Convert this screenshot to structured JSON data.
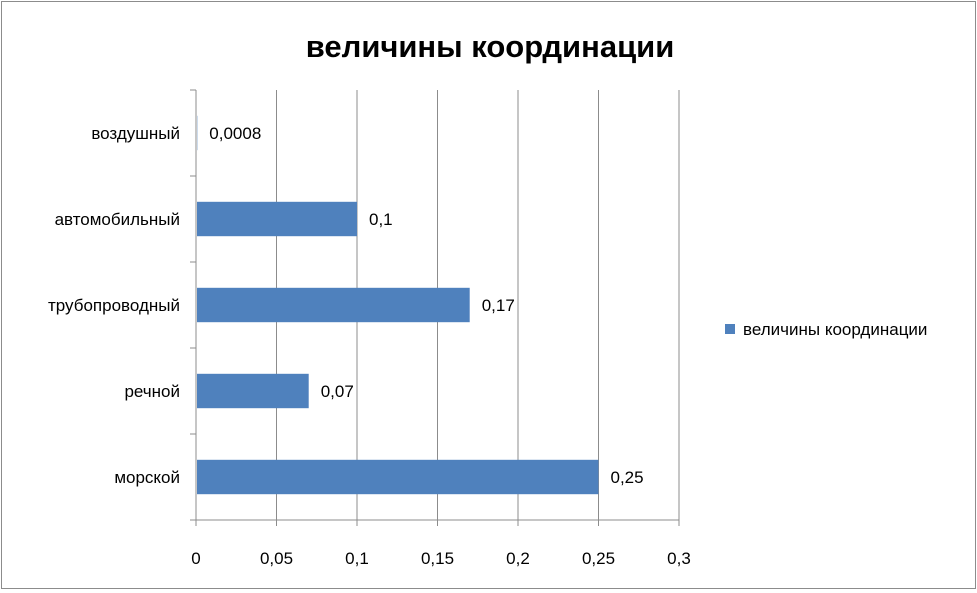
{
  "chart_data": {
    "type": "bar",
    "orientation": "horizontal",
    "title": "величины координации",
    "categories": [
      "морской",
      "речной",
      "трубопроводный",
      "автомобильный",
      "воздушный"
    ],
    "series": [
      {
        "name": "величины координации",
        "values": [
          0.25,
          0.07,
          0.17,
          0.1,
          0.0008
        ],
        "labels": [
          "0,25",
          "0,07",
          "0,17",
          "0,1",
          "0,0008"
        ],
        "color": "#4f81bd"
      }
    ],
    "xlim": [
      0,
      0.3
    ],
    "x_ticks": [
      0,
      0.05,
      0.1,
      0.15,
      0.2,
      0.25,
      0.3
    ],
    "x_tick_labels": [
      "0",
      "0,05",
      "0,1",
      "0,15",
      "0,2",
      "0,25",
      "0,3"
    ],
    "grid": "vertical major gridlines",
    "legend_position": "right",
    "colors": {
      "bar": "#4f81bd",
      "gridline": "#8c8c8c",
      "axis": "#8c8c8c",
      "border": "#8c8c8c"
    }
  }
}
